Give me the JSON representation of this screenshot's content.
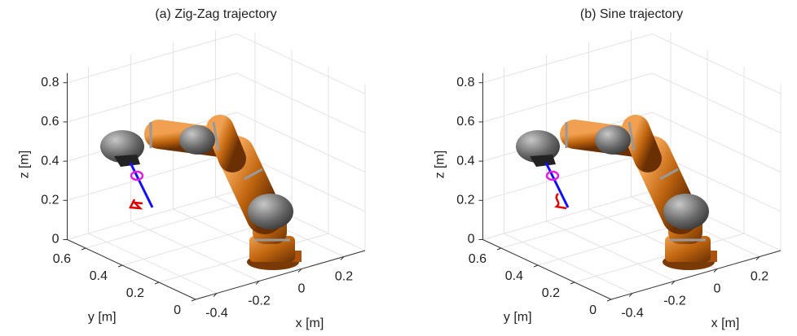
{
  "chart_data": [
    {
      "type": "line3d",
      "title": "(a) Zig-Zag trajectory",
      "xlabel": "x [m]",
      "ylabel": "y [m]",
      "zlabel": "z [m]",
      "xlim": [
        -0.5,
        0.3
      ],
      "ylim": [
        0,
        0.7
      ],
      "zlim": [
        0,
        0.85
      ],
      "xticks": [
        -0.4,
        -0.2,
        0,
        0.2
      ],
      "yticks": [
        0,
        0.2,
        0.4,
        0.6
      ],
      "zticks": [
        0,
        0.2,
        0.4,
        0.6,
        0.8
      ],
      "grid": true
    },
    {
      "type": "line3d",
      "title": "(b) Sine trajectory",
      "xlabel": "x [m]",
      "ylabel": "y [m]",
      "zlabel": "z [m]",
      "xlim": [
        -0.5,
        0.3
      ],
      "ylim": [
        0,
        0.7
      ],
      "zlim": [
        0,
        0.85
      ],
      "xticks": [
        -0.4,
        -0.2,
        0,
        0.2
      ],
      "yticks": [
        0,
        0.2,
        0.4,
        0.6
      ],
      "zticks": [
        0,
        0.2,
        0.4,
        0.6,
        0.8
      ],
      "grid": true
    }
  ]
}
